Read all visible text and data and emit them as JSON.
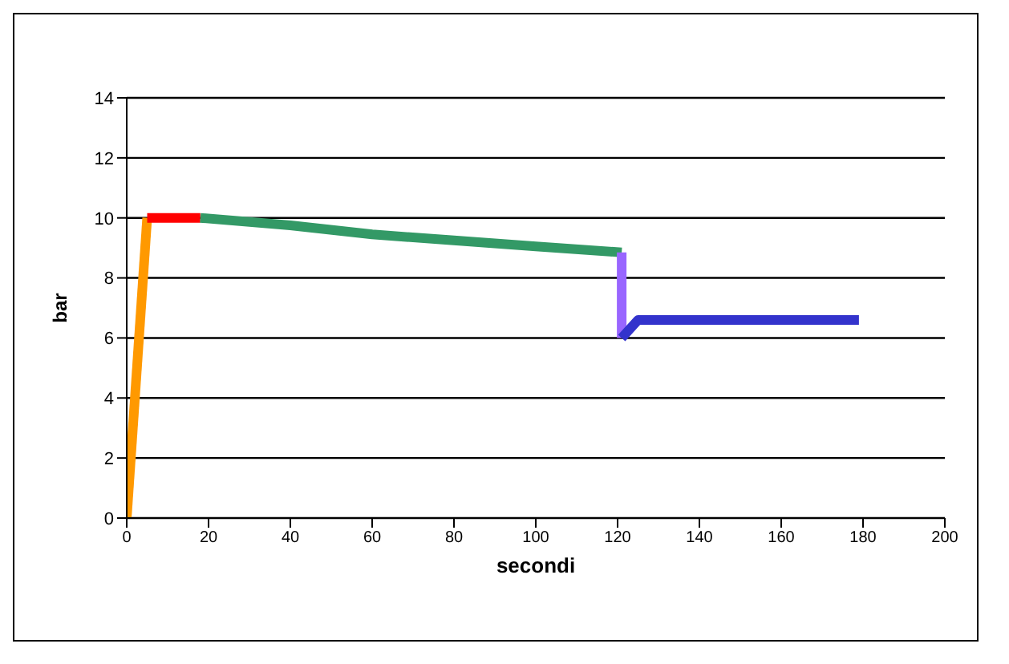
{
  "chart_data": {
    "type": "line",
    "xlabel": "secondi",
    "ylabel": "bar",
    "xlim": [
      0,
      200
    ],
    "xticks": [
      0,
      20,
      40,
      60,
      80,
      100,
      120,
      140,
      160,
      180,
      200
    ],
    "ylim": [
      0,
      14
    ],
    "yticks": [
      0,
      2,
      4,
      6,
      8,
      10,
      12,
      14
    ],
    "grid": "y",
    "marker": "none",
    "line_style": "solid",
    "series": [
      {
        "color": "#ff9900",
        "x": [
          0,
          5
        ],
        "values": [
          0,
          10
        ]
      },
      {
        "color": "#ff0000",
        "x": [
          5,
          18
        ],
        "values": [
          10,
          10
        ]
      },
      {
        "color": "#339966",
        "x": [
          18,
          40,
          60,
          80,
          100,
          121
        ],
        "values": [
          10,
          9.75,
          9.45,
          9.25,
          9.05,
          8.85
        ]
      },
      {
        "color": "#9966ff",
        "x": [
          121,
          121
        ],
        "values": [
          8.85,
          6
        ]
      },
      {
        "color": "#3333cc",
        "x": [
          121,
          125,
          179
        ],
        "values": [
          6,
          6.6,
          6.6
        ]
      }
    ]
  }
}
